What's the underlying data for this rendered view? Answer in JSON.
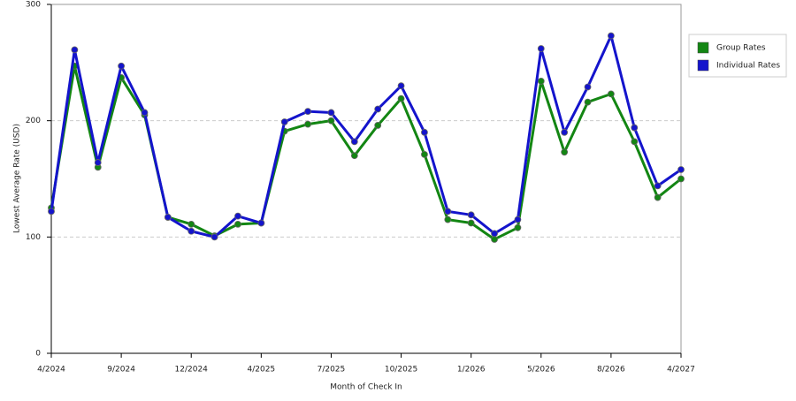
{
  "chart_data": {
    "type": "line",
    "x_label": "Month of Check In",
    "y_label": "Lowest Average Rate (USD)",
    "categories": [
      "4/2024",
      null,
      null,
      "9/2024",
      null,
      null,
      "12/2024",
      null,
      null,
      "4/2025",
      null,
      null,
      "7/2025",
      null,
      null,
      "10/2025",
      null,
      null,
      "1/2026",
      null,
      null,
      "5/2026",
      null,
      null,
      "8/2026",
      null,
      null,
      "4/2027"
    ],
    "series": [
      {
        "name": "Group Rates",
        "color": "#138613",
        "values": [
          125,
          247,
          160,
          237,
          205,
          117,
          111,
          101,
          111,
          112,
          191,
          197,
          200,
          170,
          196,
          219,
          171,
          115,
          112,
          98,
          108,
          234,
          173,
          216,
          223,
          182,
          134,
          150
        ]
      },
      {
        "name": "Individual Rates",
        "color": "#1414cc",
        "values": [
          122,
          261,
          164,
          247,
          207,
          117,
          105,
          100,
          118,
          112,
          199,
          208,
          207,
          182,
          210,
          230,
          190,
          122,
          119,
          103,
          115,
          262,
          190,
          229,
          273,
          194,
          144,
          158
        ]
      }
    ],
    "ylim": [
      0,
      300
    ],
    "yticks": [
      0,
      100,
      200,
      300
    ],
    "grid": true,
    "legend": "right"
  }
}
